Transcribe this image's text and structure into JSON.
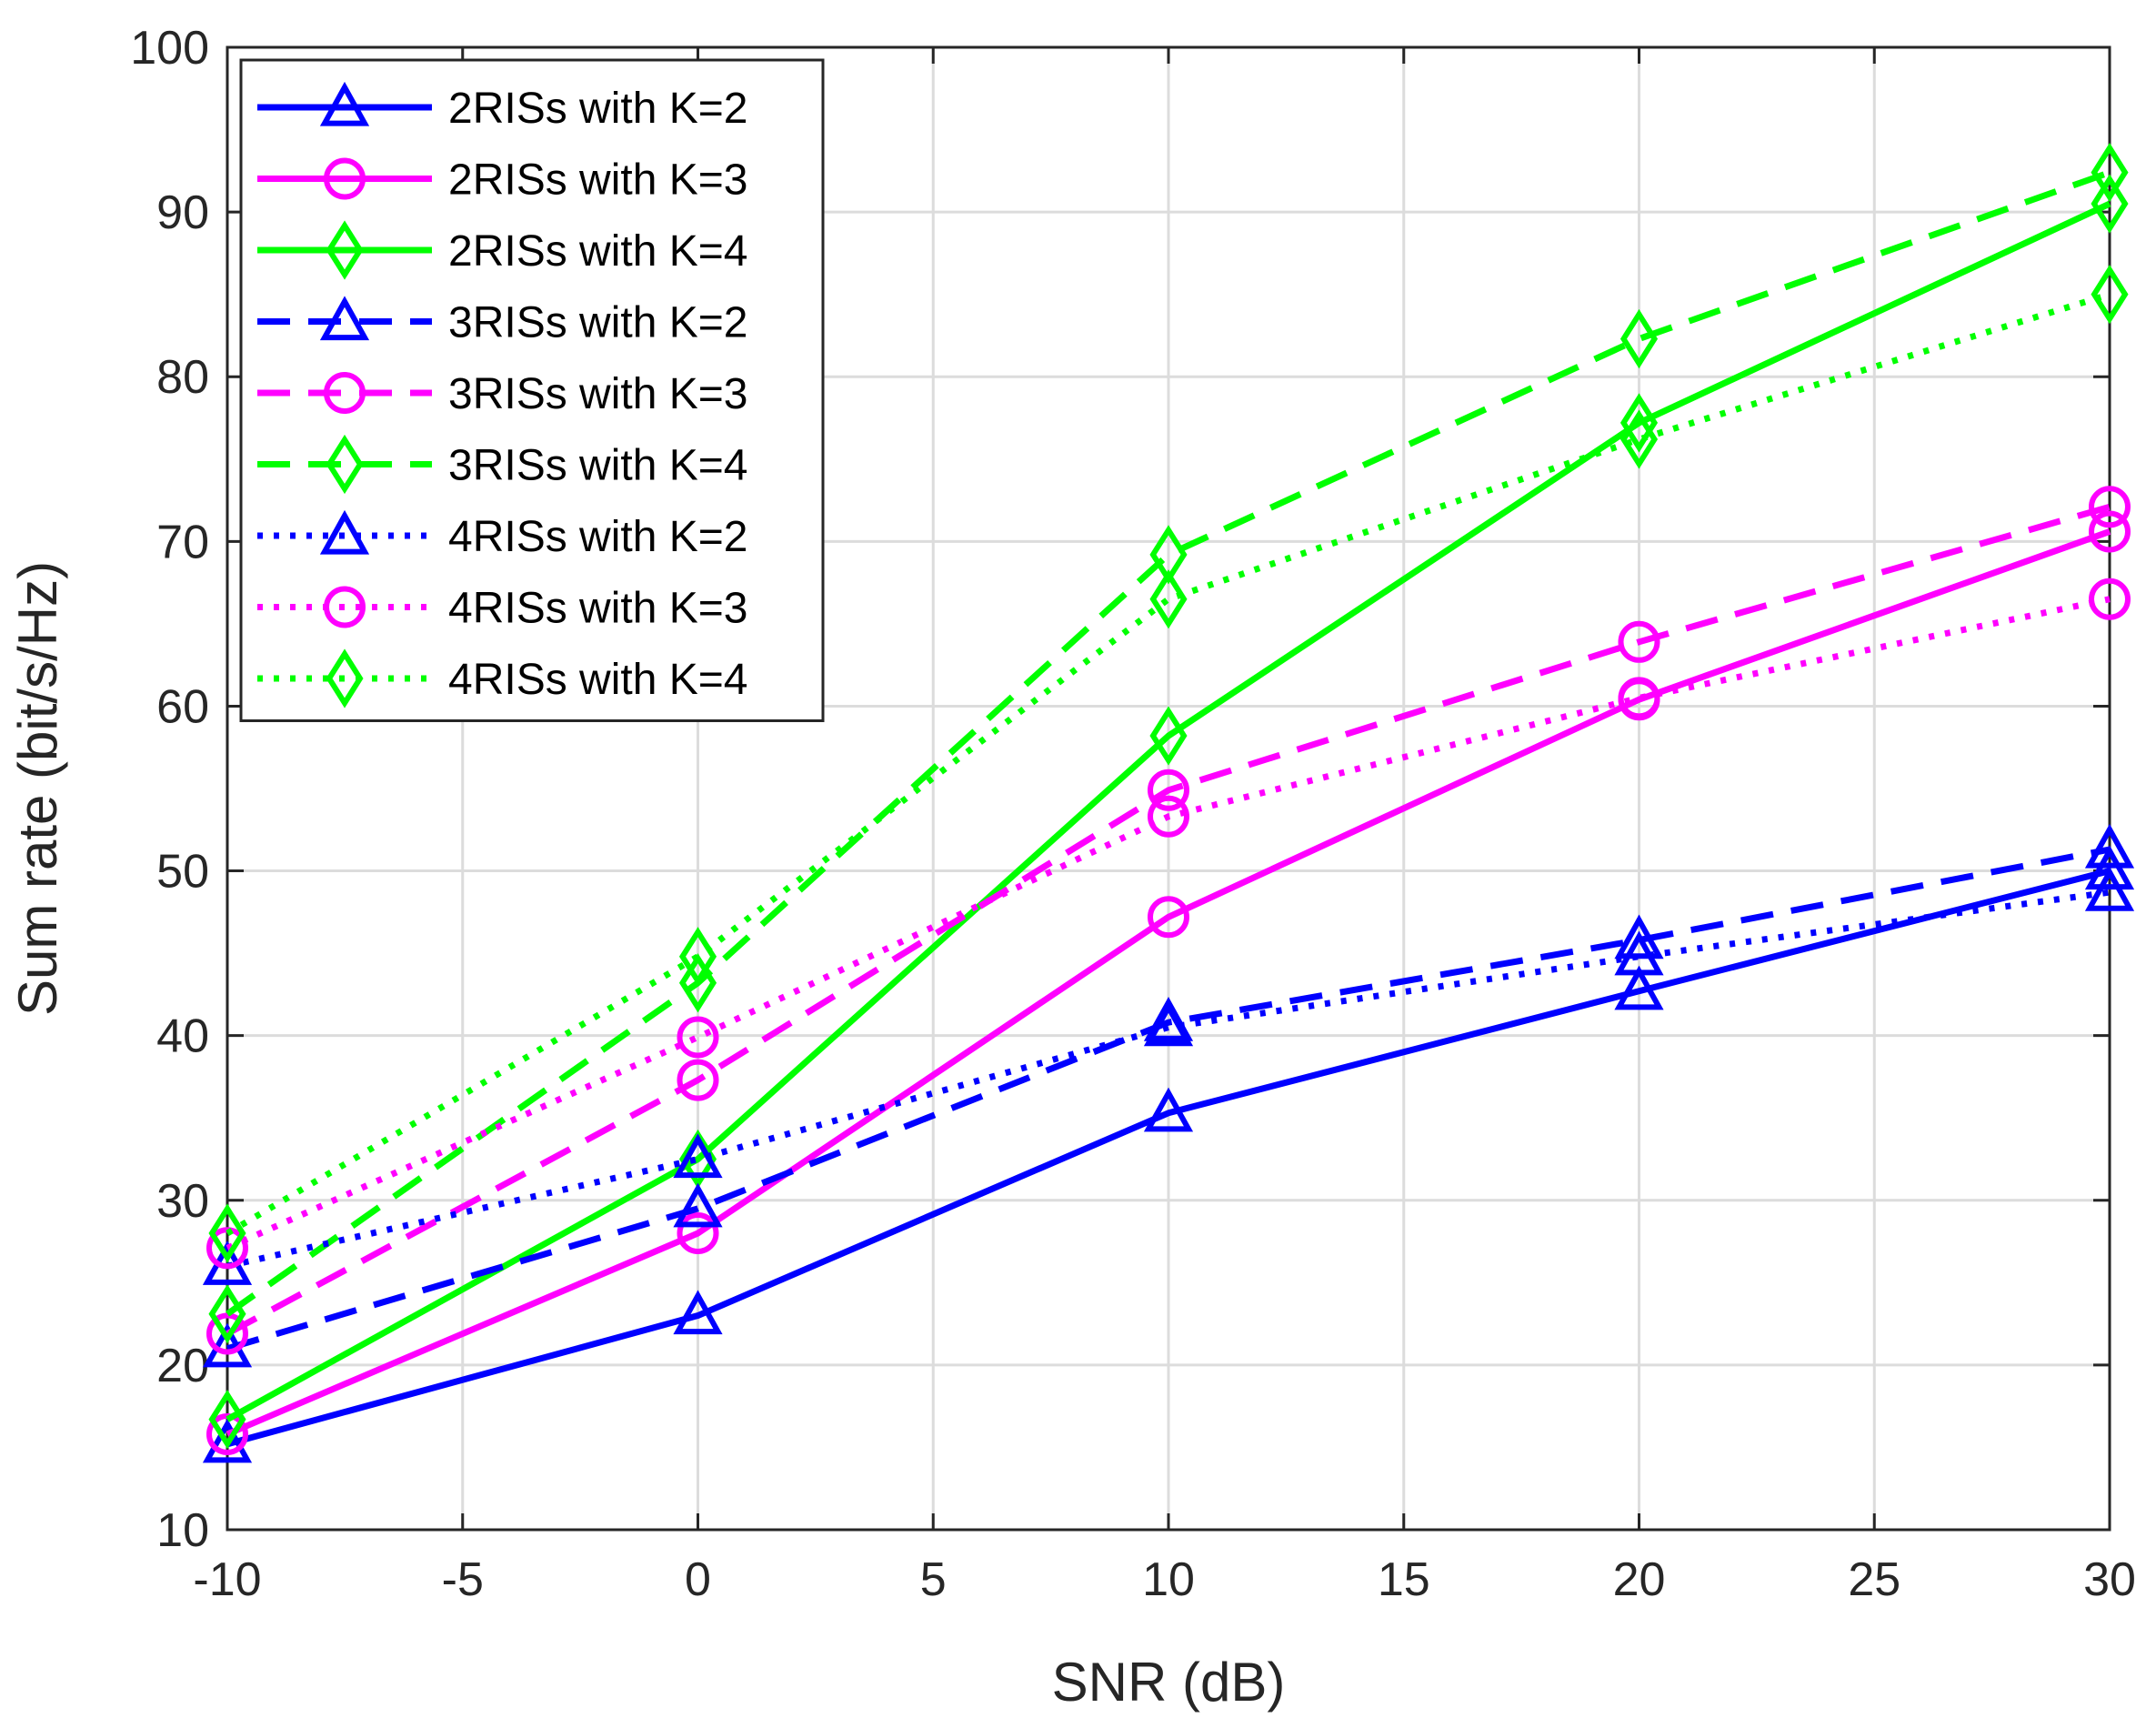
{
  "chart_data": {
    "type": "line",
    "title": "",
    "xlabel": "SNR (dB)",
    "ylabel": "Sum rate (bit/s/Hz)",
    "xlim": [
      -10,
      30
    ],
    "ylim": [
      10,
      100
    ],
    "xticks": [
      "-10",
      "-5",
      "0",
      "5",
      "10",
      "15",
      "20",
      "25",
      "30"
    ],
    "yticks": [
      "10",
      "20",
      "30",
      "40",
      "50",
      "60",
      "70",
      "80",
      "90",
      "100"
    ],
    "grid": true,
    "legend_position": "top-left",
    "x": [
      -10,
      0,
      10,
      20,
      30
    ],
    "series": [
      {
        "name": "2RISs with K=2",
        "color": "#0000ff",
        "dash": "solid",
        "marker": "triangle",
        "values": [
          15.2,
          23.0,
          35.3,
          42.7,
          50.0
        ]
      },
      {
        "name": "2RISs with K=3",
        "color": "#ff00ff",
        "dash": "solid",
        "marker": "circle",
        "values": [
          15.8,
          28.0,
          47.2,
          60.4,
          70.6
        ]
      },
      {
        "name": "2RISs with K=4",
        "color": "#00ff00",
        "dash": "solid",
        "marker": "diamond",
        "values": [
          16.7,
          32.5,
          58.2,
          77.2,
          90.5
        ]
      },
      {
        "name": "3RISs with K=2",
        "color": "#0000ff",
        "dash": "dashed",
        "marker": "triangle",
        "values": [
          21.0,
          29.5,
          40.8,
          45.8,
          51.3
        ]
      },
      {
        "name": "3RISs with K=3",
        "color": "#ff00ff",
        "dash": "dashed",
        "marker": "circle",
        "values": [
          21.9,
          37.3,
          54.9,
          63.9,
          72.1
        ]
      },
      {
        "name": "3RISs with K=4",
        "color": "#00ff00",
        "dash": "dashed",
        "marker": "diamond",
        "values": [
          23.1,
          43.2,
          69.2,
          82.3,
          92.4
        ]
      },
      {
        "name": "4RISs with K=2",
        "color": "#0000ff",
        "dash": "dotted",
        "marker": "triangle",
        "values": [
          26.0,
          32.5,
          40.5,
          44.8,
          48.7
        ]
      },
      {
        "name": "4RISs with K=3",
        "color": "#ff00ff",
        "dash": "dotted",
        "marker": "circle",
        "values": [
          27.1,
          39.9,
          53.3,
          60.5,
          66.5
        ]
      },
      {
        "name": "4RISs with K=4",
        "color": "#00ff00",
        "dash": "dotted",
        "marker": "diamond",
        "values": [
          28.0,
          44.8,
          66.5,
          76.2,
          85.0
        ]
      }
    ]
  }
}
